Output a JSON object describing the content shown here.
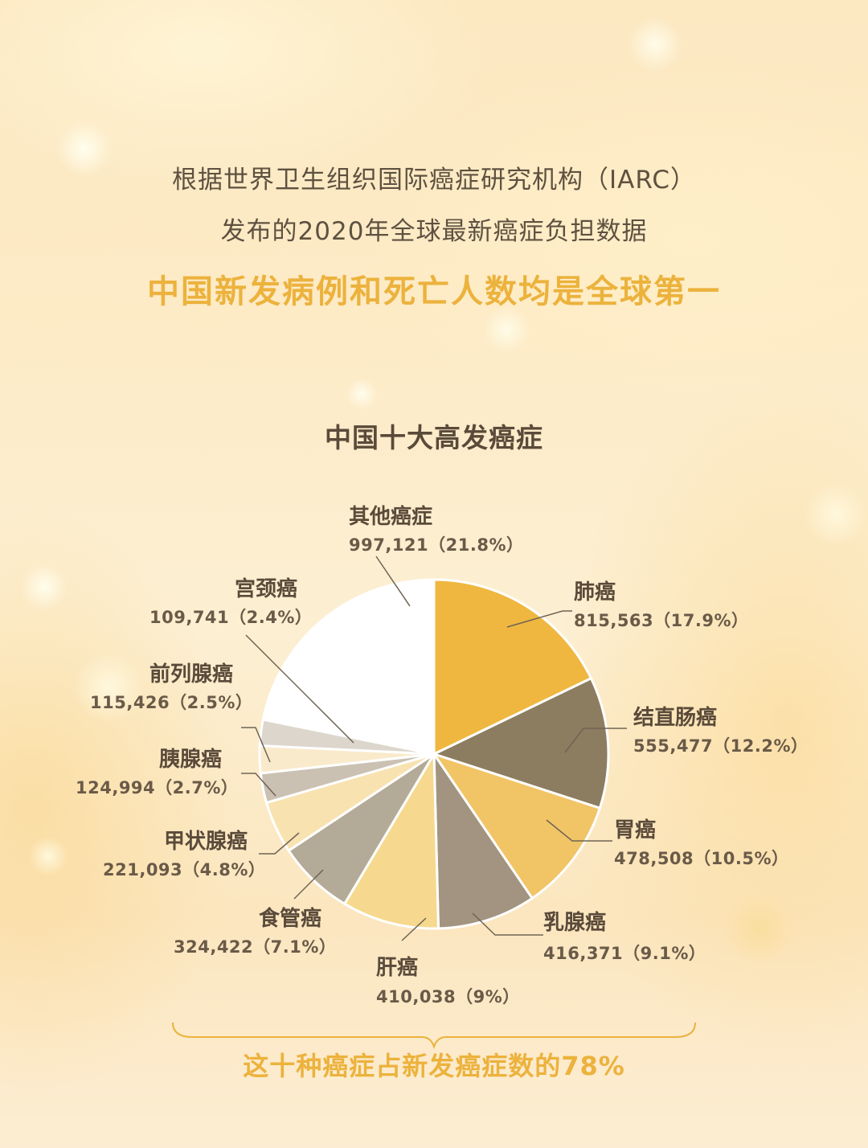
{
  "header": {
    "intro_line1": "根据世界卫生组织国际癌症研究机构（IARC）",
    "intro_line2": "发布的2020年全球最新癌症负担数据",
    "headline": "中国新发病例和死亡人数均是全球第一"
  },
  "chart_data": {
    "type": "pie",
    "title": "中国十大高发癌症",
    "slices": [
      {
        "name": "肺癌",
        "value": 815563,
        "label": "815,563（17.9%）",
        "color": "#efb740"
      },
      {
        "name": "结直肠癌",
        "value": 555477,
        "label": "555,477（12.2%）",
        "color": "#8c7d60"
      },
      {
        "name": "胃癌",
        "value": 478508,
        "label": "478,508（10.5%）",
        "color": "#f1c466"
      },
      {
        "name": "乳腺癌",
        "value": 416371,
        "label": "416,371（9.1%）",
        "color": "#a29480"
      },
      {
        "name": "肝癌",
        "value": 410038,
        "label": "410,038（9%）",
        "color": "#f6d98e"
      },
      {
        "name": "食管癌",
        "value": 324422,
        "label": "324,422（7.1%）",
        "color": "#b4aa98"
      },
      {
        "name": "甲状腺癌",
        "value": 221093,
        "label": "221,093（4.8%）",
        "color": "#f8e2b0"
      },
      {
        "name": "胰腺癌",
        "value": 124994,
        "label": "124,994（2.7%）",
        "color": "#cac1b3"
      },
      {
        "name": "前列腺癌",
        "value": 115426,
        "label": "115,426（2.5%）",
        "color": "#f9eacb"
      },
      {
        "name": "宫颈癌",
        "value": 109741,
        "label": "109,741（2.4%）",
        "color": "#dcd6cc"
      },
      {
        "name": "其他癌症",
        "value": 997121,
        "label": "997,121（21.8%）",
        "color": "#ffffff"
      }
    ]
  },
  "footer": {
    "summary": "这十种癌症占新发癌症数的78%"
  },
  "colors": {
    "accent": "#ecb23c",
    "text_dark": "#5a4a3a",
    "leader_line": "#6f6454"
  }
}
